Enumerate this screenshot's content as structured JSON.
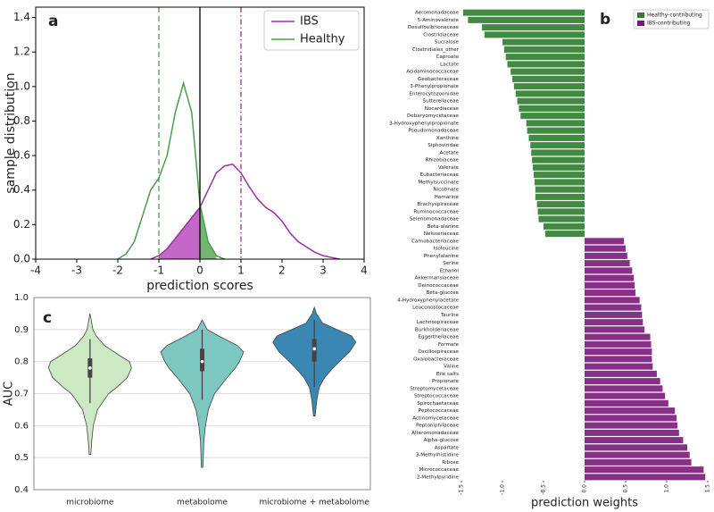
{
  "chart_data": [
    {
      "type": "line",
      "panel_label": "a",
      "xlabel": "prediction scores",
      "ylabel": "sample distribution",
      "x": [
        -2.0,
        -1.8,
        -1.6,
        -1.4,
        -1.2,
        -1.0,
        -0.8,
        -0.6,
        -0.4,
        -0.2,
        0.0,
        0.2,
        0.4,
        0.6,
        0.8,
        1.0,
        1.2,
        1.4,
        1.6,
        1.8,
        2.0,
        2.2,
        2.4,
        2.6,
        2.8,
        3.0,
        3.2,
        3.4
      ],
      "series": [
        {
          "name": "IBS",
          "color": "#9b2fa0",
          "fill_color": "#b84cc0",
          "fill_range": [
            -1,
            0
          ],
          "values": [
            null,
            null,
            null,
            null,
            0,
            0.02,
            0.06,
            0.12,
            0.18,
            0.24,
            0.3,
            0.4,
            0.5,
            0.54,
            0.55,
            0.5,
            0.42,
            0.35,
            0.3,
            0.27,
            0.22,
            0.15,
            0.1,
            0.07,
            0.04,
            0.02,
            0.01,
            0
          ]
        },
        {
          "name": "Healthy",
          "color": "#4a9e4a",
          "fill_color": "#5aaa5a",
          "fill_range": [
            0,
            0.4
          ],
          "values": [
            0,
            0.03,
            0.1,
            0.25,
            0.4,
            0.47,
            0.6,
            0.85,
            1.02,
            0.85,
            0.32,
            0.1,
            0.02,
            0,
            null,
            null,
            null,
            null,
            null,
            null,
            null,
            null,
            null,
            null,
            null,
            null,
            null,
            null
          ]
        }
      ],
      "vlines": [
        {
          "x": -1,
          "color": "#4a9e4a",
          "dash": "dashed"
        },
        {
          "x": 0,
          "color": "#000000",
          "dash": "solid"
        },
        {
          "x": 1,
          "color": "#9b2fa0",
          "dash": "dashdot"
        }
      ],
      "xlim": [
        -4,
        4
      ],
      "xticks": [
        -4,
        -3,
        -2,
        -1,
        0,
        1,
        2,
        3,
        4
      ],
      "ylim": [
        0,
        1.46
      ],
      "yticks": [
        {
          "value": 0,
          "label": "0.0"
        },
        0.2,
        0.4,
        0.6,
        0.8,
        {
          "value": 1,
          "label": "1.0"
        },
        1.2,
        1.4
      ],
      "legend": "upper right"
    },
    {
      "type": "bar",
      "orientation": "horizontal",
      "panel_label": "b",
      "xlabel": "prediction weights",
      "categories": [
        "Aeromonadaceae",
        "5-Aminovalerate",
        "Desulfovibrionaceae",
        "Clostridiaceae",
        "Sucralose",
        "Clostridiales_other",
        "Caproate",
        "Lactate",
        "Acidaminococcaceae",
        "Geobacteraceae",
        "3-Phenylpropionate",
        "Enterocytozoonidae",
        "Sutterellaceae",
        "Nocardiaceae",
        "Debaryomycetaceae",
        "3-Hydroxyphenylpropionate",
        "Pseudomonadaceae",
        "Xanthine",
        "Siphoviridae",
        "Acetate",
        "Rhizobiaceae",
        "Valerate",
        "Eubacteriaceae",
        "Methylsuccinate",
        "Nicotinate",
        "Homarine",
        "Brachyspiraceae",
        "Ruminococcaceae",
        "Selenomonadaceae",
        "Beta-alanine",
        "Neisseriaceae",
        "Carnobacteriaceae",
        "Isoleucine",
        "Phenylalanine",
        "Serine",
        "Ethanol",
        "Akkermansiaceae",
        "Deinococcaceae",
        "Beta-glucose",
        "4-Hydroxyphenylacetate",
        "Leuconostocaceae",
        "Taurine",
        "Lachnospiraceae",
        "Burkholderiaceae",
        "Eggerthellaceae",
        "Formate",
        "Oscillospiraceae",
        "Oxalobacteraceae",
        "Valine",
        "Bile salts",
        "Propionate",
        "Streptomycetaceae",
        "Streptococcaceae",
        "Spirochaetaceae",
        "Peptococcaceae",
        "Actinomycetaceae",
        "Peptoniphilaceae",
        "Alteromonadaceae",
        "Alpha-glucose",
        "Aspartate",
        "3-Methylhistidine",
        "Ribose",
        "Micrococcaceae",
        "2-Methylpyridine"
      ],
      "series": [
        {
          "name": "Healthy-contributing",
          "color": "#2e7d2e",
          "values": [
            -1.48,
            -1.42,
            -1.25,
            -1.22,
            -1.0,
            -0.98,
            -0.96,
            -0.94,
            -0.9,
            -0.88,
            -0.86,
            -0.84,
            -0.82,
            -0.8,
            -0.78,
            -0.71,
            -0.7,
            -0.68,
            -0.66,
            -0.65,
            -0.64,
            -0.63,
            -0.62,
            -0.61,
            -0.6,
            -0.6,
            -0.58,
            -0.57,
            -0.56,
            -0.5,
            -0.48,
            null,
            null,
            null,
            null,
            null,
            null,
            null,
            null,
            null,
            null,
            null,
            null,
            null,
            null,
            null,
            null,
            null,
            null,
            null,
            null,
            null,
            null,
            null,
            null,
            null,
            null,
            null,
            null,
            null,
            null,
            null,
            null,
            null
          ]
        },
        {
          "name": "IBS-contributing",
          "color": "#7a1a7a",
          "values": [
            null,
            null,
            null,
            null,
            null,
            null,
            null,
            null,
            null,
            null,
            null,
            null,
            null,
            null,
            null,
            null,
            null,
            null,
            null,
            null,
            null,
            null,
            null,
            null,
            null,
            null,
            null,
            null,
            null,
            null,
            null,
            0.48,
            0.5,
            0.52,
            0.55,
            0.58,
            0.6,
            0.61,
            0.62,
            0.67,
            0.69,
            0.7,
            0.71,
            0.73,
            0.8,
            0.81,
            0.82,
            0.82,
            0.83,
            0.88,
            0.92,
            0.95,
            0.98,
            1.02,
            1.1,
            1.12,
            1.13,
            1.15,
            1.2,
            1.25,
            1.28,
            1.3,
            1.45,
            1.47
          ]
        }
      ],
      "xlim": [
        -1.5,
        1.5
      ],
      "xticks": [
        -1.5,
        {
          "value": -1,
          "label": "-1.0"
        },
        -0.5,
        {
          "value": 0,
          "label": "0.0"
        },
        0.5,
        {
          "value": 1,
          "label": "1.0"
        },
        1.5
      ],
      "legend": "upper right"
    },
    {
      "type": "violin",
      "panel_label": "c",
      "ylabel": "AUC",
      "categories": [
        "microbiome",
        "metabolome",
        "microbiome + metabolome"
      ],
      "colors": [
        "#cde9c4",
        "#7cc7c0",
        "#3a87b4"
      ],
      "violins": [
        {
          "ys": [
            0.51,
            0.55,
            0.6,
            0.65,
            0.7,
            0.72,
            0.75,
            0.78,
            0.8,
            0.82,
            0.85,
            0.88,
            0.9,
            0.93,
            0.95
          ],
          "widths": [
            0.02,
            0.04,
            0.08,
            0.18,
            0.45,
            0.65,
            0.9,
            1.0,
            0.95,
            0.7,
            0.35,
            0.15,
            0.07,
            0.03,
            0
          ],
          "whisker_low": 0.67,
          "q1": 0.75,
          "median": 0.78,
          "q3": 0.81,
          "whisker_high": 0.87
        },
        {
          "ys": [
            0.47,
            0.55,
            0.6,
            0.65,
            0.7,
            0.75,
            0.78,
            0.8,
            0.83,
            0.85,
            0.88,
            0.9,
            0.93
          ],
          "widths": [
            0.02,
            0.04,
            0.08,
            0.15,
            0.3,
            0.6,
            0.8,
            0.9,
            1.0,
            0.85,
            0.4,
            0.12,
            0
          ],
          "whisker_low": 0.68,
          "q1": 0.77,
          "median": 0.8,
          "q3": 0.84,
          "whisker_high": 0.9
        },
        {
          "ys": [
            0.63,
            0.68,
            0.72,
            0.75,
            0.78,
            0.8,
            0.83,
            0.86,
            0.88,
            0.9,
            0.92,
            0.95,
            0.97
          ],
          "widths": [
            0.02,
            0.06,
            0.12,
            0.25,
            0.45,
            0.6,
            0.85,
            1.0,
            0.9,
            0.55,
            0.2,
            0.05,
            0
          ],
          "whisker_low": 0.72,
          "q1": 0.8,
          "median": 0.84,
          "q3": 0.87,
          "whisker_high": 0.93
        }
      ],
      "ylim": [
        0.4,
        1.0
      ],
      "yticks": [
        0.4,
        0.5,
        0.6,
        0.7,
        0.8,
        0.9,
        {
          "value": 1,
          "label": "1.0"
        }
      ],
      "grid": true
    }
  ]
}
